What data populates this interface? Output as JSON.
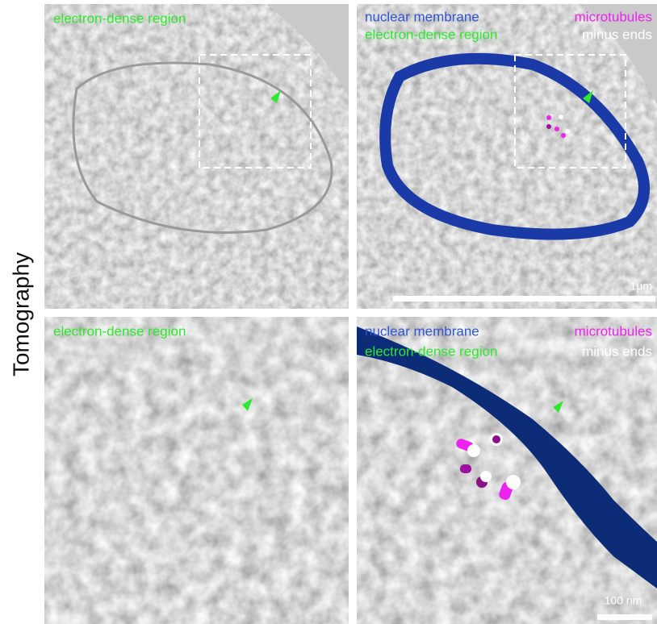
{
  "side_label": "Tomography",
  "panels": [
    {
      "labels": [
        "electron-dense region"
      ]
    },
    {
      "labels": [
        "nuclear membrane",
        "microtubules",
        "electron-dense region",
        "minus ends"
      ],
      "scale_bar": "1μm"
    },
    {
      "labels": [
        "electron-dense region"
      ]
    },
    {
      "labels": [
        "nuclear membrane",
        "microtubules",
        "electron-dense region",
        "minus ends"
      ],
      "scale_bar": "100 nm"
    }
  ]
}
